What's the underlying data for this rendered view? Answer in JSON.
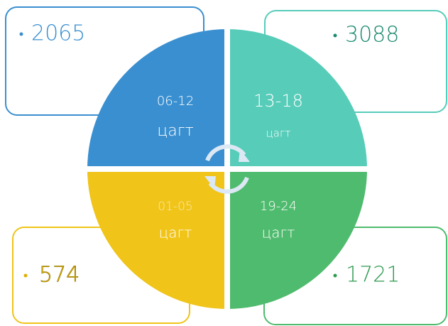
{
  "quadrants": [
    {
      "hours": "06-12",
      "unit": "цагт",
      "value": 2065
    },
    {
      "hours": "13-18",
      "unit": "цагт",
      "value": 3088
    },
    {
      "hours": "01-05",
      "unit": "цагт",
      "value": 574
    },
    {
      "hours": "19-24",
      "unit": "цагт",
      "value": 1721
    }
  ]
}
